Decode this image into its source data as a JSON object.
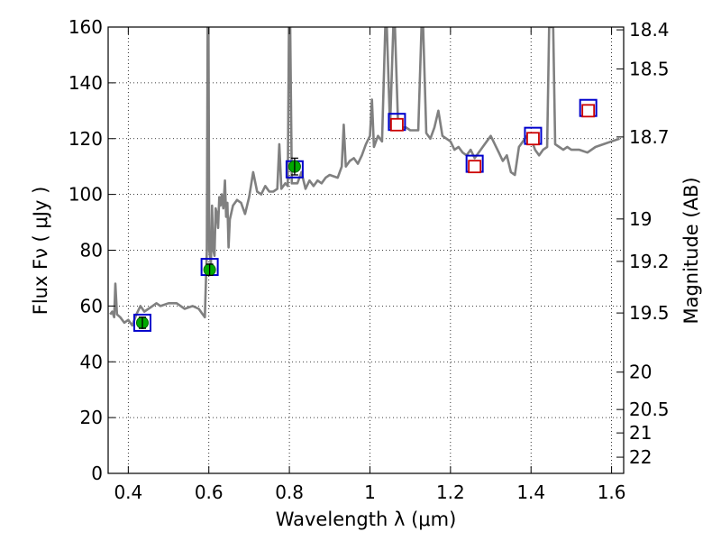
{
  "chart_data": {
    "type": "line",
    "xlabel": "Wavelength  λ (μm)",
    "ylabel": "Flux  Fν  ( μJy )",
    "y2label": "Magnitude (AB)",
    "xlim": [
      0.35,
      1.63
    ],
    "ylim": [
      0,
      160
    ],
    "grid": true,
    "x_ticks": [
      0.4,
      0.6,
      0.8,
      1.0,
      1.2,
      1.4,
      1.6
    ],
    "x_tick_labels": [
      "0.4",
      "0.6",
      "0.8",
      "1",
      "1.2",
      "1.4",
      "1.6"
    ],
    "y_ticks": [
      0,
      20,
      40,
      60,
      80,
      100,
      120,
      140,
      160
    ],
    "y_tick_labels": [
      "0",
      "20",
      "40",
      "60",
      "80",
      "100",
      "120",
      "140",
      "160"
    ],
    "y2_ticks": [
      {
        "label": "18.4",
        "flux": 159.0
      },
      {
        "label": "18.5",
        "flux": 145.0
      },
      {
        "label": "18.7",
        "flux": 120.6
      },
      {
        "label": "19",
        "flux": 91.2
      },
      {
        "label": "19.2",
        "flux": 76.0
      },
      {
        "label": "19.5",
        "flux": 57.5
      },
      {
        "label": "20",
        "flux": 36.3
      },
      {
        "label": "20.5",
        "flux": 22.9
      },
      {
        "label": "21",
        "flux": 14.5
      },
      {
        "label": "22",
        "flux": 5.8
      }
    ],
    "series": [
      {
        "kind": "spectrum",
        "color": "#808080",
        "points": [
          [
            0.355,
            57
          ],
          [
            0.36,
            58
          ],
          [
            0.365,
            56
          ],
          [
            0.368,
            68
          ],
          [
            0.372,
            57
          ],
          [
            0.38,
            56
          ],
          [
            0.39,
            54
          ],
          [
            0.4,
            55
          ],
          [
            0.41,
            53
          ],
          [
            0.42,
            57
          ],
          [
            0.43,
            60
          ],
          [
            0.44,
            58
          ],
          [
            0.45,
            59
          ],
          [
            0.46,
            60
          ],
          [
            0.47,
            61
          ],
          [
            0.48,
            60
          ],
          [
            0.5,
            61
          ],
          [
            0.52,
            61
          ],
          [
            0.54,
            59
          ],
          [
            0.56,
            60
          ],
          [
            0.575,
            59
          ],
          [
            0.585,
            57
          ],
          [
            0.59,
            56
          ],
          [
            0.595,
            80
          ],
          [
            0.597,
            160
          ],
          [
            0.599,
            160
          ],
          [
            0.601,
            80
          ],
          [
            0.605,
            75
          ],
          [
            0.608,
            96
          ],
          [
            0.611,
            80
          ],
          [
            0.614,
            78
          ],
          [
            0.617,
            95
          ],
          [
            0.62,
            93
          ],
          [
            0.623,
            88
          ],
          [
            0.626,
            99
          ],
          [
            0.629,
            96
          ],
          [
            0.632,
            100
          ],
          [
            0.636,
            95
          ],
          [
            0.64,
            105
          ],
          [
            0.643,
            92
          ],
          [
            0.646,
            97
          ],
          [
            0.649,
            81
          ],
          [
            0.652,
            91
          ],
          [
            0.66,
            96
          ],
          [
            0.67,
            98
          ],
          [
            0.68,
            97
          ],
          [
            0.69,
            93
          ],
          [
            0.7,
            99
          ],
          [
            0.71,
            108
          ],
          [
            0.72,
            101
          ],
          [
            0.73,
            100
          ],
          [
            0.74,
            103
          ],
          [
            0.75,
            101
          ],
          [
            0.76,
            101
          ],
          [
            0.77,
            102
          ],
          [
            0.775,
            118
          ],
          [
            0.78,
            102
          ],
          [
            0.79,
            104
          ],
          [
            0.796,
            103
          ],
          [
            0.799,
            160
          ],
          [
            0.802,
            160
          ],
          [
            0.806,
            104
          ],
          [
            0.82,
            104
          ],
          [
            0.83,
            108
          ],
          [
            0.84,
            102
          ],
          [
            0.85,
            105
          ],
          [
            0.86,
            103
          ],
          [
            0.87,
            105
          ],
          [
            0.88,
            104
          ],
          [
            0.89,
            106
          ],
          [
            0.9,
            107
          ],
          [
            0.92,
            106
          ],
          [
            0.93,
            110
          ],
          [
            0.935,
            125
          ],
          [
            0.94,
            110
          ],
          [
            0.95,
            112
          ],
          [
            0.96,
            113
          ],
          [
            0.97,
            111
          ],
          [
            0.98,
            114
          ],
          [
            0.99,
            118
          ],
          [
            1.0,
            121
          ],
          [
            1.005,
            134
          ],
          [
            1.01,
            117
          ],
          [
            1.02,
            121
          ],
          [
            1.03,
            119
          ],
          [
            1.038,
            160
          ],
          [
            1.042,
            160
          ],
          [
            1.05,
            124
          ],
          [
            1.058,
            160
          ],
          [
            1.062,
            160
          ],
          [
            1.07,
            124
          ],
          [
            1.08,
            124
          ],
          [
            1.09,
            124
          ],
          [
            1.1,
            123
          ],
          [
            1.11,
            123
          ],
          [
            1.12,
            123
          ],
          [
            1.128,
            160
          ],
          [
            1.132,
            160
          ],
          [
            1.14,
            122
          ],
          [
            1.15,
            120
          ],
          [
            1.16,
            124
          ],
          [
            1.17,
            130
          ],
          [
            1.18,
            121
          ],
          [
            1.19,
            120
          ],
          [
            1.2,
            119
          ],
          [
            1.21,
            116
          ],
          [
            1.22,
            117
          ],
          [
            1.23,
            115
          ],
          [
            1.24,
            114
          ],
          [
            1.25,
            116
          ],
          [
            1.26,
            113
          ],
          [
            1.27,
            115
          ],
          [
            1.28,
            117
          ],
          [
            1.29,
            119
          ],
          [
            1.3,
            121
          ],
          [
            1.31,
            118
          ],
          [
            1.32,
            115
          ],
          [
            1.33,
            112
          ],
          [
            1.34,
            114
          ],
          [
            1.35,
            108
          ],
          [
            1.36,
            107
          ],
          [
            1.37,
            117
          ],
          [
            1.38,
            119
          ],
          [
            1.39,
            121
          ],
          [
            1.4,
            120
          ],
          [
            1.41,
            116
          ],
          [
            1.42,
            114
          ],
          [
            1.43,
            116
          ],
          [
            1.44,
            117
          ],
          [
            1.445,
            160
          ],
          [
            1.455,
            160
          ],
          [
            1.46,
            118
          ],
          [
            1.47,
            117
          ],
          [
            1.48,
            116
          ],
          [
            1.49,
            117
          ],
          [
            1.5,
            116
          ],
          [
            1.52,
            116
          ],
          [
            1.54,
            115
          ],
          [
            1.56,
            117
          ],
          [
            1.58,
            118
          ],
          [
            1.6,
            119
          ],
          [
            1.62,
            120
          ]
        ]
      },
      {
        "kind": "photometry_blue_squares",
        "color": "#0000cc",
        "points": [
          [
            0.435,
            54
          ],
          [
            0.602,
            74
          ],
          [
            0.813,
            109
          ],
          [
            1.067,
            126
          ],
          [
            1.26,
            111
          ],
          [
            1.405,
            121
          ],
          [
            1.542,
            131
          ]
        ]
      },
      {
        "kind": "photometry_red_squares",
        "color": "#cc0000",
        "points": [
          [
            1.067,
            125
          ],
          [
            1.26,
            110
          ],
          [
            1.405,
            120
          ],
          [
            1.542,
            130
          ]
        ]
      },
      {
        "kind": "photometry_green_points",
        "color": "#00aa00",
        "points": [
          {
            "x": 0.435,
            "y": 54,
            "err": 2
          },
          {
            "x": 0.602,
            "y": 73,
            "err": 2
          },
          {
            "x": 0.813,
            "y": 110,
            "err": 3
          }
        ]
      }
    ]
  }
}
